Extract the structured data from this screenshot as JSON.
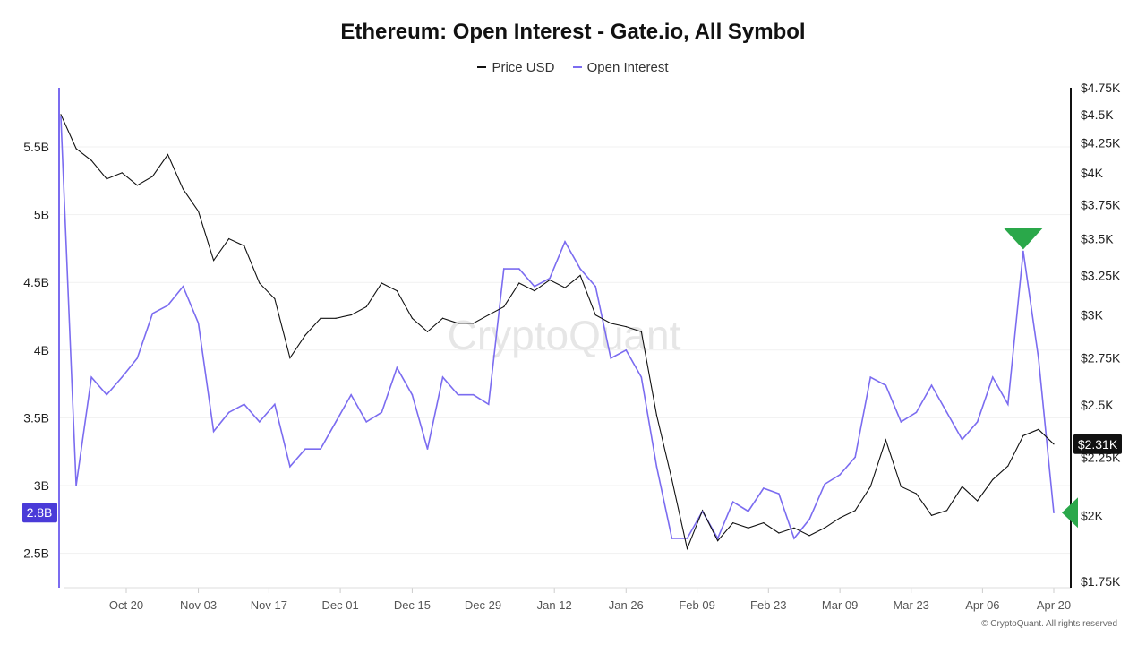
{
  "chart_data": {
    "type": "line",
    "title": "Ethereum: Open Interest - Gate.io, All Symbol",
    "legend_position": "top",
    "grid": true,
    "x": [
      "Oct 07",
      "Oct 10",
      "Oct 13",
      "Oct 16",
      "Oct 19",
      "Oct 22",
      "Oct 25",
      "Oct 28",
      "Oct 31",
      "Nov 03",
      "Nov 06",
      "Nov 09",
      "Nov 12",
      "Nov 15",
      "Nov 18",
      "Nov 21",
      "Nov 24",
      "Nov 27",
      "Nov 30",
      "Dec 03",
      "Dec 06",
      "Dec 09",
      "Dec 12",
      "Dec 15",
      "Dec 18",
      "Dec 21",
      "Dec 24",
      "Dec 27",
      "Dec 30",
      "Jan 02",
      "Jan 05",
      "Jan 08",
      "Jan 11",
      "Jan 14",
      "Jan 17",
      "Jan 20",
      "Jan 23",
      "Jan 26",
      "Jan 29",
      "Feb 01",
      "Feb 04",
      "Feb 07",
      "Feb 10",
      "Feb 13",
      "Feb 16",
      "Feb 19",
      "Feb 22",
      "Feb 25",
      "Feb 28",
      "Mar 03",
      "Mar 06",
      "Mar 09",
      "Mar 12",
      "Mar 15",
      "Mar 18",
      "Mar 21",
      "Mar 24",
      "Mar 27",
      "Mar 30",
      "Apr 02",
      "Apr 05",
      "Apr 08",
      "Apr 11",
      "Apr 14",
      "Apr 17",
      "Apr 20"
    ],
    "x_ticks": [
      "Oct 20",
      "Nov 03",
      "Nov 17",
      "Dec 01",
      "Dec 15",
      "Dec 29",
      "Jan 12",
      "Jan 26",
      "Feb 09",
      "Feb 23",
      "Mar 09",
      "Mar 23",
      "Apr 06",
      "Apr 20"
    ],
    "series": [
      {
        "name": "Price USD",
        "axis": "right",
        "color": "#111111",
        "values": [
          4500,
          4200,
          4100,
          3950,
          4000,
          3900,
          3970,
          4150,
          3870,
          3700,
          3350,
          3500,
          3450,
          3200,
          3100,
          2750,
          2880,
          2980,
          2980,
          3000,
          3050,
          3200,
          3150,
          2980,
          2900,
          2980,
          2950,
          2950,
          3000,
          3050,
          3200,
          3150,
          3220,
          3170,
          3250,
          3000,
          2950,
          2930,
          2900,
          2450,
          2150,
          1870,
          2020,
          1900,
          1970,
          1950,
          1970,
          1930,
          1950,
          1920,
          1950,
          1990,
          2020,
          2120,
          2330,
          2120,
          2090,
          2000,
          2020,
          2120,
          2060,
          2150,
          2210,
          2350,
          2380,
          2310
        ]
      },
      {
        "name": "Open Interest",
        "axis": "left",
        "color": "#7b6cf0",
        "values": [
          5.72,
          3.0,
          3.8,
          3.67,
          3.8,
          3.94,
          4.27,
          4.33,
          4.47,
          4.2,
          3.4,
          3.54,
          3.6,
          3.47,
          3.6,
          3.14,
          3.27,
          3.27,
          3.47,
          3.67,
          3.47,
          3.54,
          3.87,
          3.67,
          3.27,
          3.8,
          3.67,
          3.67,
          3.6,
          4.6,
          4.6,
          4.47,
          4.53,
          4.8,
          4.6,
          4.47,
          3.94,
          4.0,
          3.8,
          3.14,
          2.61,
          2.61,
          2.81,
          2.61,
          2.88,
          2.81,
          2.98,
          2.94,
          2.61,
          2.75,
          3.01,
          3.08,
          3.21,
          3.8,
          3.74,
          3.47,
          3.54,
          3.74,
          3.54,
          3.34,
          3.47,
          3.8,
          3.6,
          4.73,
          3.94,
          2.8
        ]
      }
    ],
    "left_axis": {
      "ticks": [
        "2.5B",
        "3B",
        "3.5B",
        "4B",
        "4.5B",
        "5B",
        "5.5B"
      ],
      "tick_values": [
        2.5,
        3,
        3.5,
        4,
        4.5,
        5,
        5.5
      ],
      "range": [
        2.3,
        5.95
      ],
      "unit": "B"
    },
    "right_axis": {
      "scale": "log",
      "ticks": [
        "$1.75K",
        "$2K",
        "$2.25K",
        "$2.5K",
        "$2.75K",
        "$3K",
        "$3.25K",
        "$3.5K",
        "$3.75K",
        "$4K",
        "$4.25K",
        "$4.5K",
        "$4.75K"
      ],
      "tick_values": [
        1750,
        2000,
        2250,
        2500,
        2750,
        3000,
        3250,
        3500,
        3750,
        4000,
        4250,
        4500,
        4750
      ],
      "range": [
        1750,
        4750
      ]
    },
    "last_value_labels": {
      "price": "$2.31K",
      "open_interest": "2.8B"
    },
    "annotations": [
      {
        "type": "triangle-down",
        "color": "#2aa84a",
        "series": "Open Interest",
        "x": "Apr 14"
      },
      {
        "type": "triangle-left",
        "color": "#2aa84a",
        "series": "Open Interest",
        "x": "Apr 20"
      }
    ],
    "watermark": "CryptoQuant"
  },
  "footer": "© CryptoQuant. All rights reserved"
}
